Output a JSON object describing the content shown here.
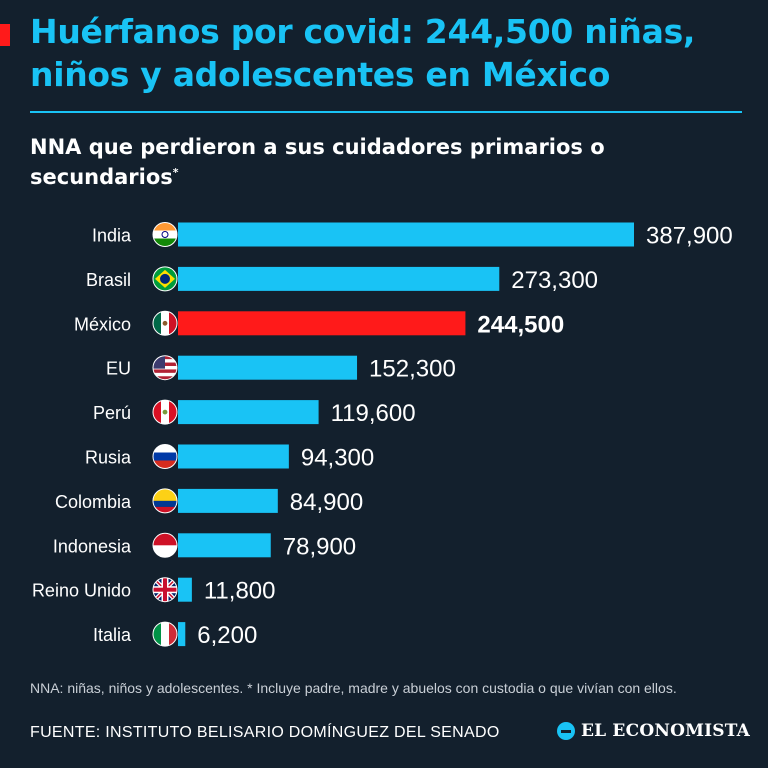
{
  "header": {
    "title": "Huérfanos por covid: 244,500 niñas, niños y adolescentes en México",
    "subtitle": "NNA que perdieron a sus cuidadores primarios o secundarios",
    "subtitle_mark": "*",
    "accent_color": "#ff1a1a",
    "title_color": "#19c3f5"
  },
  "chart_data": {
    "type": "bar",
    "orientation": "horizontal",
    "categories": [
      "India",
      "Brasil",
      "México",
      "EU",
      "Perú",
      "Rusia",
      "Colombia",
      "Indonesia",
      "Reino Unido",
      "Italia"
    ],
    "values": [
      387900,
      273300,
      244500,
      152300,
      119600,
      94300,
      84900,
      78900,
      11800,
      6200
    ],
    "value_labels": [
      "387,900",
      "273,300",
      "244,500",
      "152,300",
      "119,600",
      "94,300",
      "84,900",
      "78,900",
      "11,800",
      "6,200"
    ],
    "flags": [
      "flag-india-icon",
      "flag-brazil-icon",
      "flag-mexico-icon",
      "flag-usa-icon",
      "flag-peru-icon",
      "flag-russia-icon",
      "flag-colombia-icon",
      "flag-indonesia-icon",
      "flag-uk-icon",
      "flag-italy-icon"
    ],
    "highlight": "México",
    "bar_color": "#19c3f5",
    "highlight_color": "#ff1a1a",
    "xlim": [
      0,
      400000
    ],
    "grid": false
  },
  "footer": {
    "note": "NNA: niñas, niños y adolescentes. * Incluye padre, madre y abuelos con custodia o que vivían con ellos.",
    "source": "FUENTE: INSTITUTO BELISARIO DOMÍNGUEZ DEL SENADO",
    "brand": "EL ECONOMISTA"
  }
}
